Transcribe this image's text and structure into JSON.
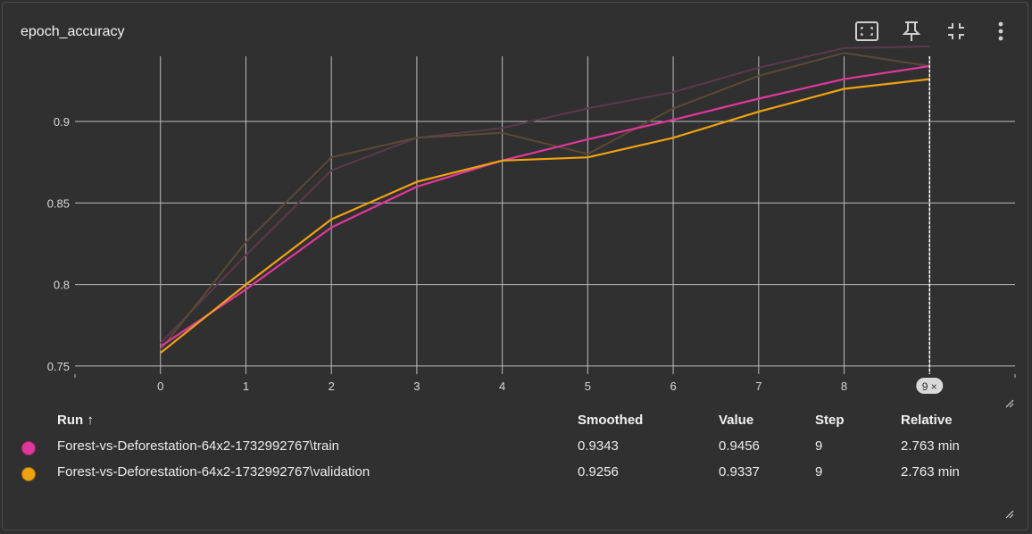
{
  "card": {
    "title": "epoch_accuracy"
  },
  "toolbar": {
    "icons": [
      "fit-domain-icon",
      "pin-icon",
      "fullscreen-exit-icon",
      "more-vert-icon"
    ]
  },
  "colors": {
    "train": "#e0379d",
    "validation": "#f0a20f",
    "train_raw": "#5a3a4c",
    "validation_raw": "#5a4a35",
    "grid": "#bdbdbd",
    "background": "#303030"
  },
  "cursor_label": "9 ×",
  "chart_data": {
    "type": "line",
    "title": "epoch_accuracy",
    "x": [
      0,
      1,
      2,
      3,
      4,
      5,
      6,
      7,
      8,
      9
    ],
    "xlim": [
      -1,
      10
    ],
    "ylim": [
      0.745,
      0.94
    ],
    "y_ticks": [
      0.75,
      0.8,
      0.85,
      0.9
    ],
    "y_tick_labels": [
      "0.75",
      "0.8",
      "0.85",
      "0.9"
    ],
    "x_tick_labels": [
      "0",
      "1",
      "2",
      "3",
      "4",
      "5",
      "6",
      "7",
      "8",
      "9"
    ],
    "grid": true,
    "series": [
      {
        "name": "Forest-vs-Deforestation-64x2-1732992767\\train",
        "kind": "smoothed",
        "values": [
          0.762,
          0.797,
          0.835,
          0.86,
          0.876,
          0.889,
          0.901,
          0.914,
          0.926,
          0.934
        ]
      },
      {
        "name": "Forest-vs-Deforestation-64x2-1732992767\\validation",
        "kind": "smoothed",
        "values": [
          0.758,
          0.8,
          0.84,
          0.863,
          0.876,
          0.878,
          0.89,
          0.906,
          0.92,
          0.926
        ]
      },
      {
        "name": "Forest-vs-Deforestation-64x2-1732992767\\train",
        "kind": "raw",
        "values": [
          0.764,
          0.818,
          0.87,
          0.89,
          0.896,
          0.908,
          0.918,
          0.933,
          0.945,
          0.946
        ]
      },
      {
        "name": "Forest-vs-Deforestation-64x2-1732992767\\validation",
        "kind": "raw",
        "values": [
          0.76,
          0.826,
          0.878,
          0.89,
          0.893,
          0.88,
          0.908,
          0.928,
          0.942,
          0.934
        ]
      }
    ]
  },
  "table": {
    "headers": {
      "run": "Run ↑",
      "smoothed": "Smoothed",
      "value": "Value",
      "step": "Step",
      "relative": "Relative"
    },
    "rows": [
      {
        "run": "Forest-vs-Deforestation-64x2-1732992767\\train",
        "smoothed": "0.9343",
        "value": "0.9456",
        "step": "9",
        "relative": "2.763 min",
        "color": "#e0379d"
      },
      {
        "run": "Forest-vs-Deforestation-64x2-1732992767\\validation",
        "smoothed": "0.9256",
        "value": "0.9337",
        "step": "9",
        "relative": "2.763 min",
        "color": "#f0a20f"
      }
    ]
  }
}
